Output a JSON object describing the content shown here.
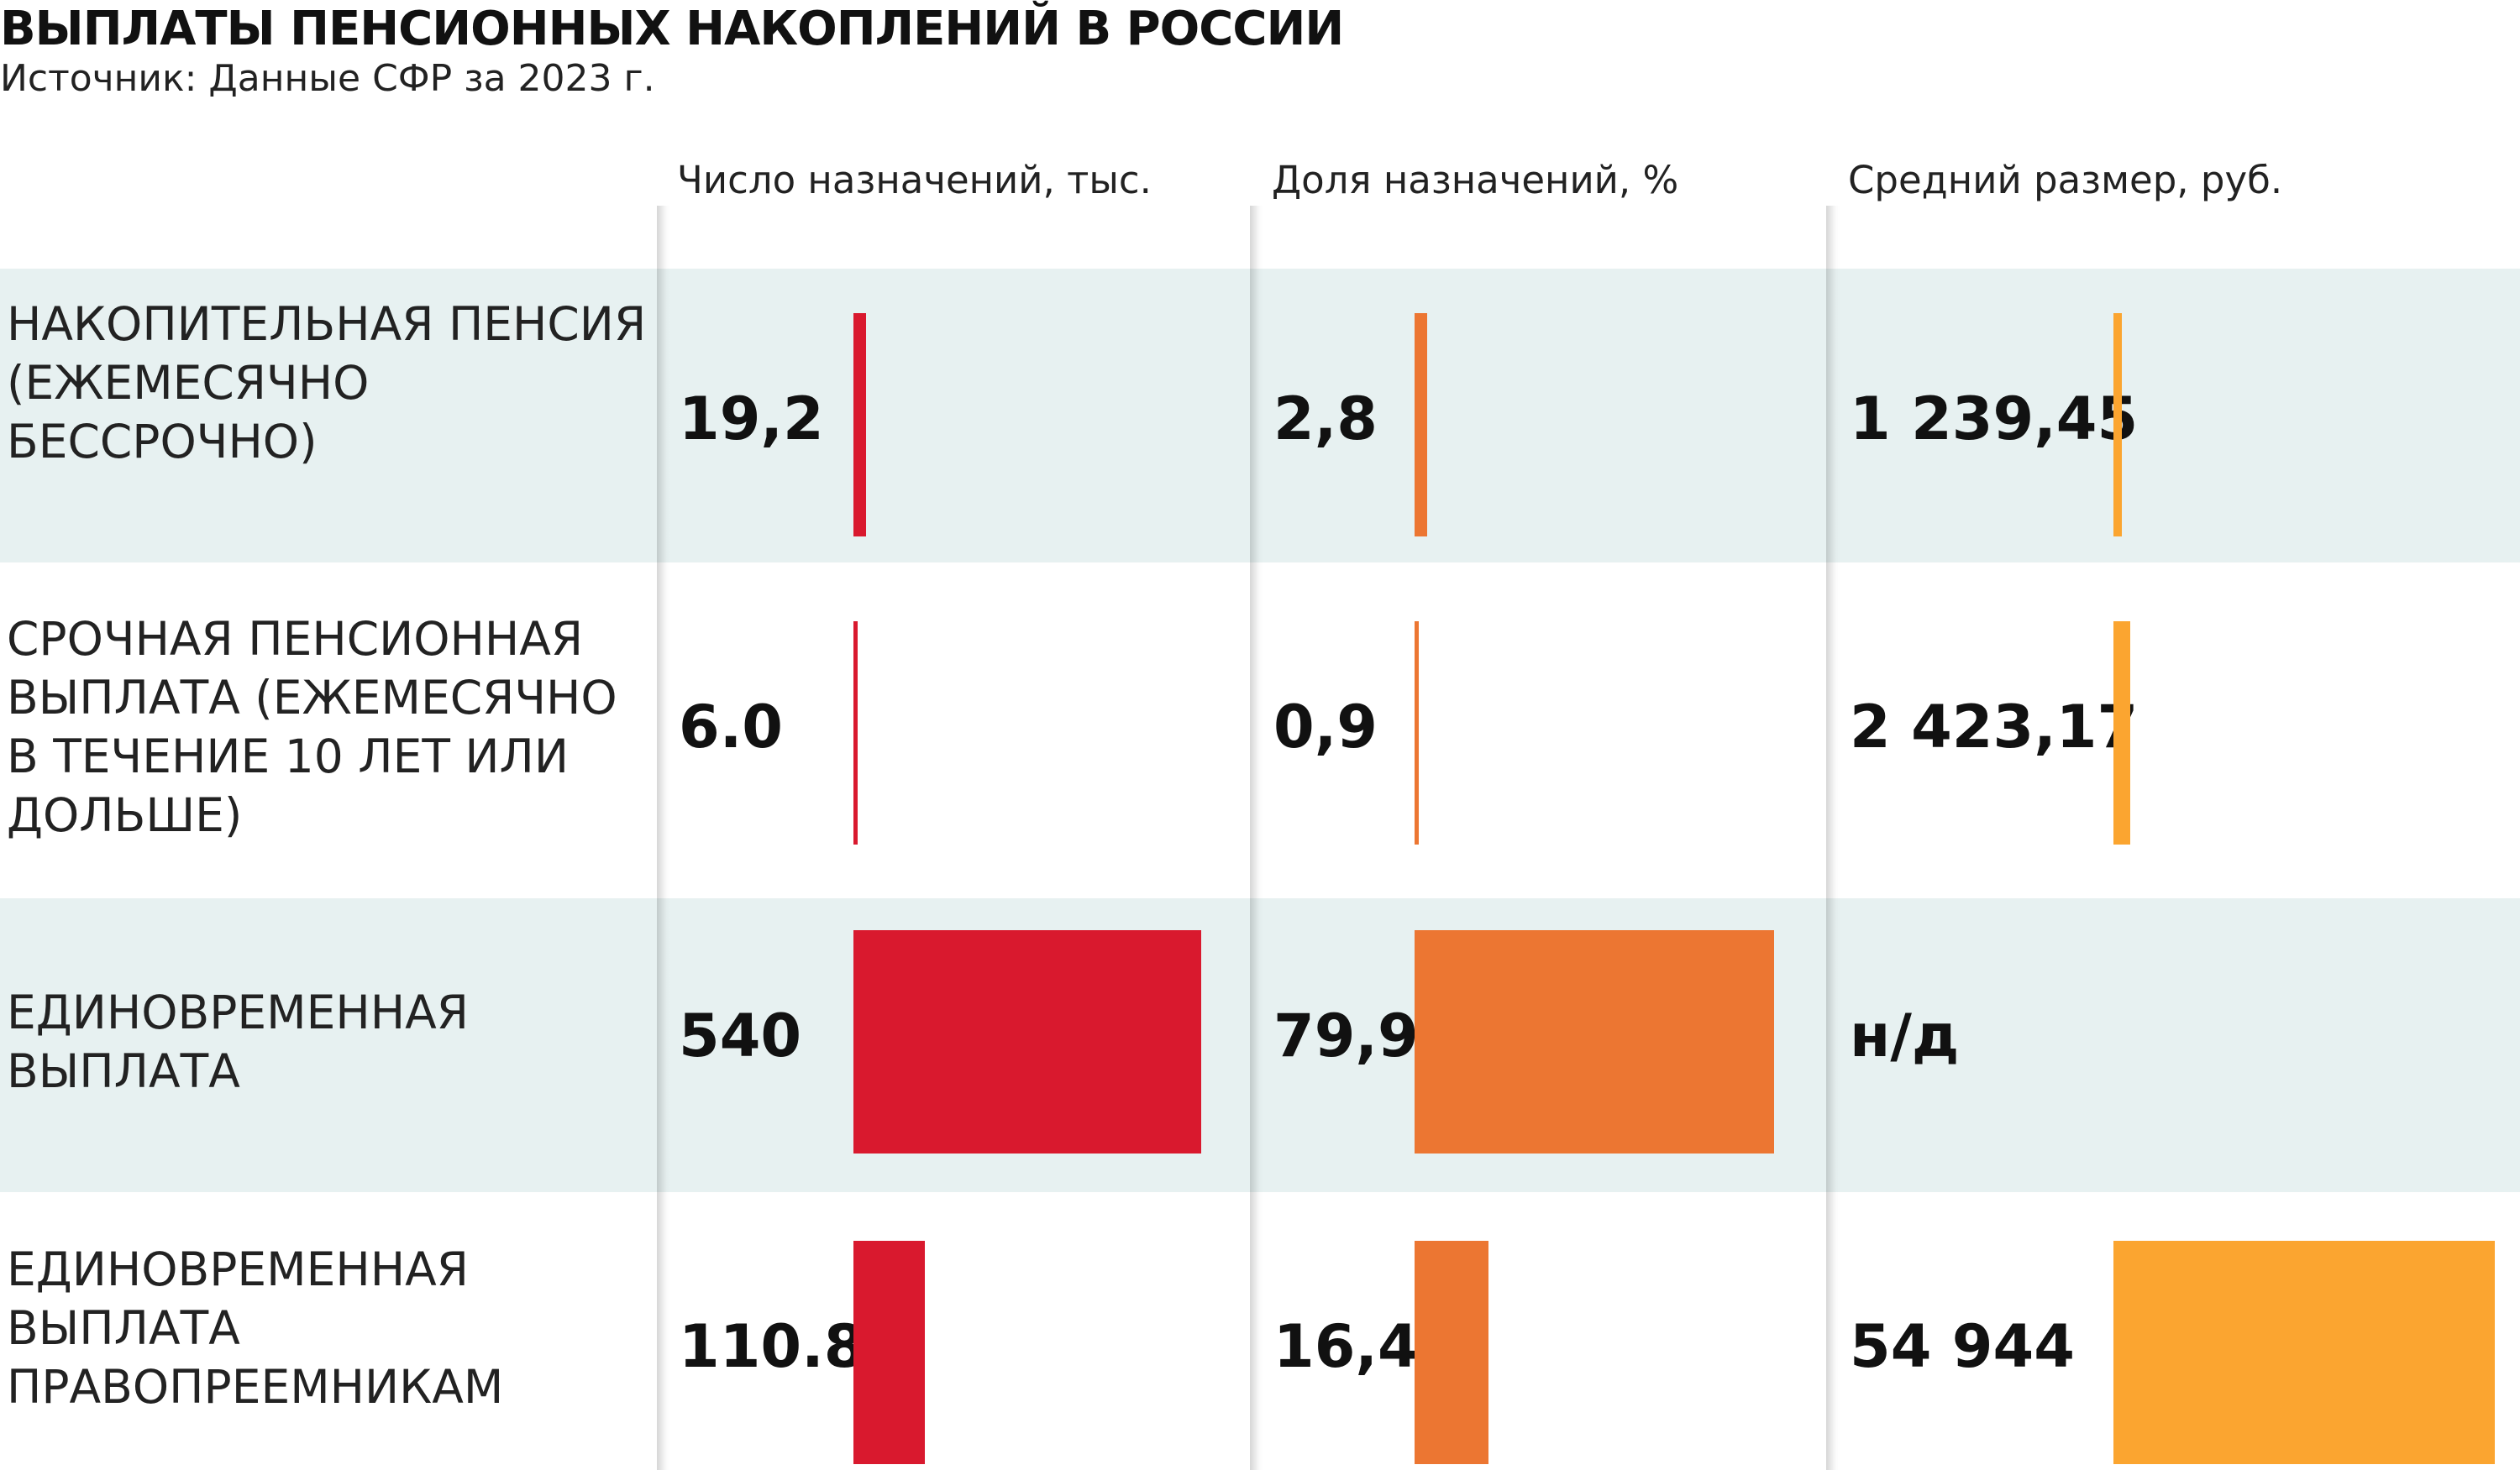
{
  "title": "ВЫПЛАТЫ ПЕНСИОННЫХ НАКОПЛЕНИЙ В РОССИИ",
  "subtitle": "Источник: Данные СФР за 2023 г.",
  "colors": {
    "count": "#d9192e",
    "share": "#ec7632",
    "avg": "#fba530",
    "band": "#e7f1f1"
  },
  "chart_data": {
    "type": "table",
    "columns": [
      "Число назначений, тыс.",
      "Доля назначений, %",
      "Средний размер, руб."
    ],
    "rows": [
      {
        "label": "НАКОПИТЕЛЬНАЯ ПЕНСИЯ (ЕЖЕМЕСЯЧНО БЕССРОЧНО)",
        "count": 19.2,
        "count_text": "19,2",
        "share": 2.8,
        "share_text": "2,8",
        "avg": 1239.45,
        "avg_text": "1 239,45"
      },
      {
        "label": "СРОЧНАЯ ПЕНСИОННАЯ ВЫПЛАТА (ЕЖЕМЕСЯЧНО В ТЕЧЕНИЕ 10 ЛЕТ ИЛИ ДОЛЬШЕ)",
        "count": 6.0,
        "count_text": "6.0",
        "share": 0.9,
        "share_text": "0,9",
        "avg": 2423.17,
        "avg_text": "2 423,17"
      },
      {
        "label": "ЕДИНОВРЕМЕННАЯ ВЫПЛАТА",
        "count": 540,
        "count_text": "540",
        "share": 79.9,
        "share_text": "79,9",
        "avg": null,
        "avg_text": "н/д"
      },
      {
        "label": "ЕДИНОВРЕМЕННАЯ ВЫПЛАТА ПРАВОПРЕЕМНИКАМ",
        "count": 110.8,
        "count_text": "110.8",
        "share": 16.4,
        "share_text": "16,4",
        "avg": 54944,
        "avg_text": "54 944"
      }
    ]
  }
}
